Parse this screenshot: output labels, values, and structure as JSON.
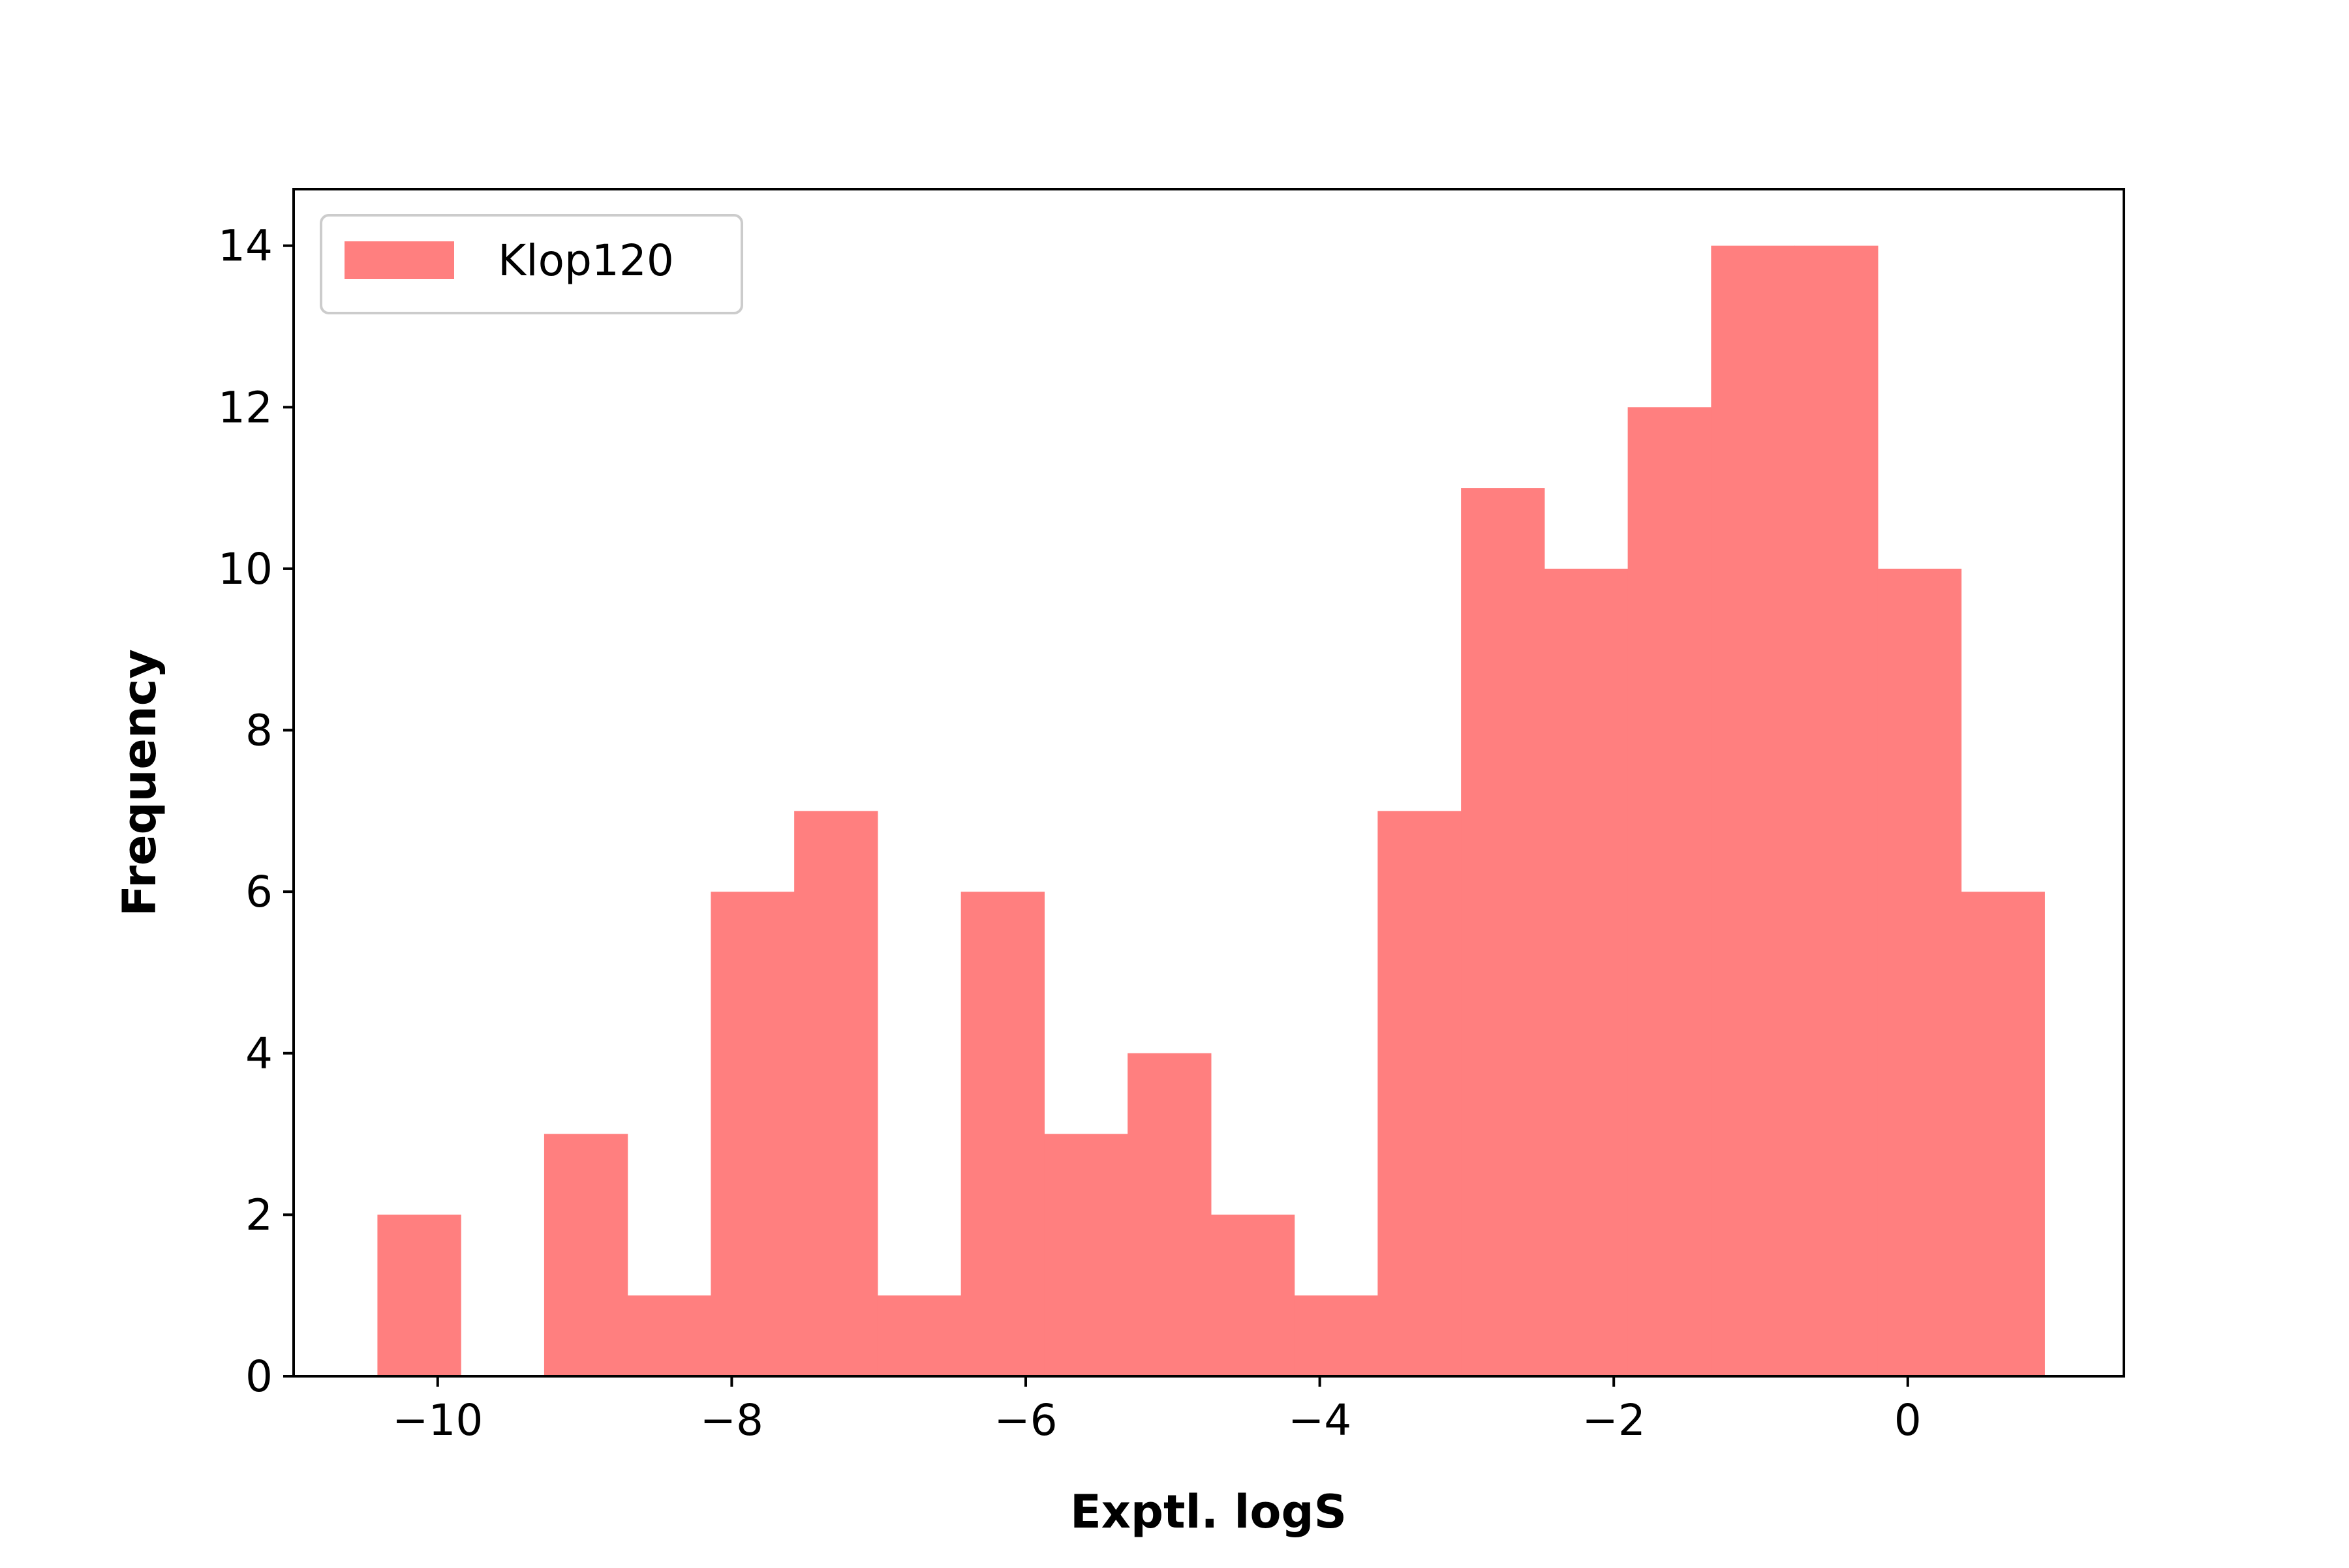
{
  "chart_data": {
    "type": "bar",
    "subtype": "histogram",
    "xlabel": "Exptl. logS",
    "ylabel": "Frequency",
    "xlim": [
      -10.98,
      1.47
    ],
    "ylim": [
      0,
      14.7
    ],
    "xticks": [
      -10,
      -8,
      -6,
      -4,
      -2,
      0
    ],
    "yticks": [
      0,
      2,
      4,
      6,
      8,
      10,
      12,
      14
    ],
    "grid": false,
    "legend_position": "upper-left",
    "series": [
      {
        "name": "Klop120",
        "color": "#ff7f7f",
        "bin_edges": [
          -10.41,
          -9.843,
          -9.276,
          -8.709,
          -8.142,
          -7.575,
          -7.008,
          -6.441,
          -5.874,
          -5.307,
          -4.74,
          -4.173,
          -3.606,
          -3.039,
          -2.472,
          -1.905,
          -1.338,
          -0.771,
          -0.204,
          0.363,
          0.93
        ],
        "counts": [
          2,
          0,
          3,
          1,
          6,
          7,
          1,
          6,
          3,
          4,
          2,
          1,
          7,
          11,
          10,
          12,
          14,
          14,
          10,
          6
        ]
      }
    ]
  }
}
